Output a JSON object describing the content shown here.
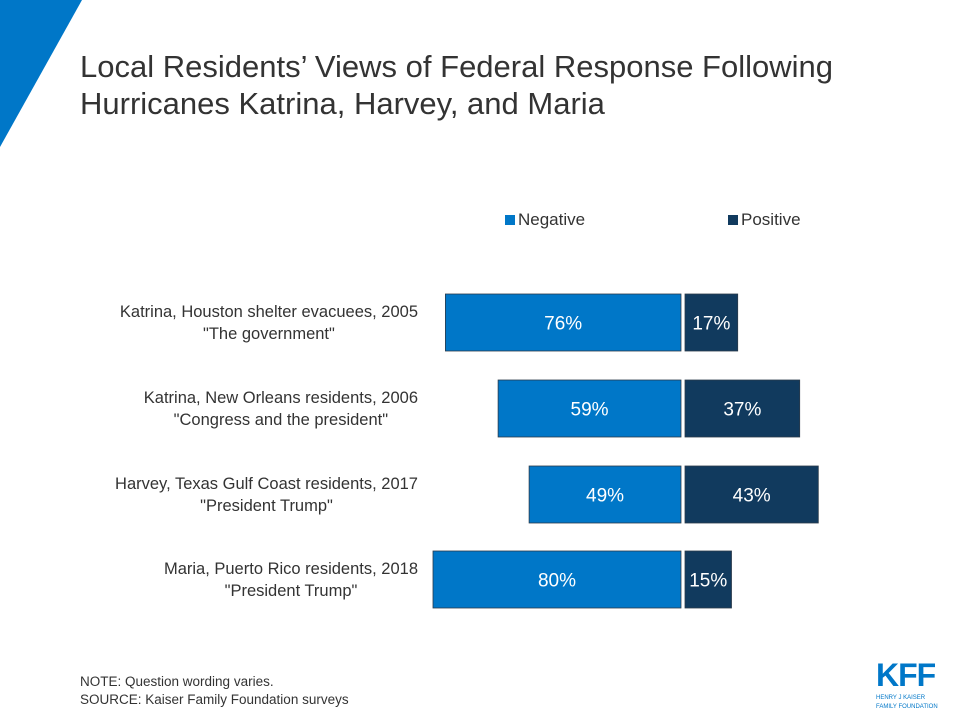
{
  "title": "Local Residents’ Views of Federal Response Following Hurricanes Katrina, Harvey, and Maria",
  "colors": {
    "negative": "#0077c8",
    "positive": "#113a5e",
    "accent": "#0077c8"
  },
  "chart_data": {
    "type": "bar",
    "orientation": "horizontal-diverging",
    "categories": [
      {
        "line1": "Katrina, Houston shelter evacuees, 2005",
        "line2": "\"The government\""
      },
      {
        "line1": "Katrina, New Orleans residents, 2006",
        "line2": "\"Congress and the president\""
      },
      {
        "line1": "Harvey, Texas Gulf Coast residents, 2017",
        "line2": "\"President Trump\""
      },
      {
        "line1": "Maria, Puerto Rico residents, 2018",
        "line2": "\"President Trump\""
      }
    ],
    "series": [
      {
        "name": "Negative",
        "values": [
          76,
          59,
          49,
          80
        ],
        "labels": [
          "76%",
          "59%",
          "49%",
          "80%"
        ]
      },
      {
        "name": "Positive",
        "values": [
          17,
          37,
          43,
          15
        ],
        "labels": [
          "17%",
          "37%",
          "43%",
          "15%"
        ]
      }
    ],
    "legend": "top",
    "grid": false
  },
  "note": "NOTE: Question wording varies.",
  "source": "SOURCE: Kaiser Family Foundation surveys",
  "logo": {
    "text": "KFF",
    "sub1": "HENRY J KAISER",
    "sub2": "FAMILY FOUNDATION"
  }
}
